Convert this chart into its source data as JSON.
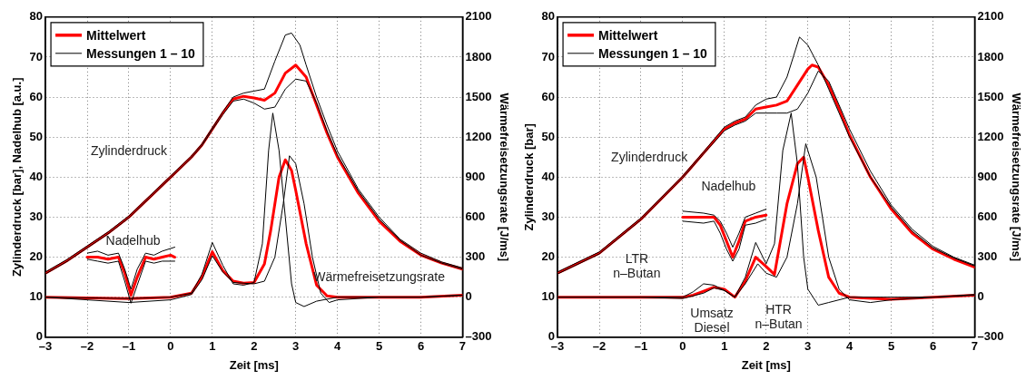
{
  "chart_data": [
    {
      "type": "line",
      "xlabel": "Zeit [ms]",
      "ylabel": "Zylinderdruck [bar], Nadelhub [a.u.]",
      "y2label": "Wärmefreisetzungsrate [J/ms]",
      "xlim": [
        -3,
        7
      ],
      "xticks": [
        {
          "value": -3,
          "label": "–3"
        },
        {
          "value": -2,
          "label": "–2"
        },
        {
          "value": -1,
          "label": "–1"
        },
        0,
        1,
        2,
        3,
        4,
        5,
        6,
        7
      ],
      "ylim": [
        0,
        80
      ],
      "yticks": [
        0,
        10,
        20,
        30,
        40,
        50,
        60,
        70,
        80
      ],
      "y2lim": [
        -300,
        2100
      ],
      "y2ticks": [
        {
          "value": -300,
          "label": "–300"
        },
        0,
        300,
        600,
        900,
        1200,
        1500,
        1800,
        2100
      ],
      "grid": true,
      "legend": "top left",
      "marker": "none",
      "line_style": "solid",
      "annotations": [
        "Zylinderdruck",
        "Nadelhub",
        "Wärmefreisetzungsrate"
      ],
      "series": [
        {
          "name": "Messungen 1 – 10",
          "color": "#000000",
          "x": [
            -3,
            -2.5,
            -2,
            -1.5,
            -1,
            -0.5,
            0,
            0.5,
            0.75,
            1,
            1.25,
            1.5,
            1.75,
            2,
            2.25,
            2.5,
            2.75,
            2.9,
            3.1,
            3.25,
            3.5,
            3.75,
            4,
            4.5,
            5,
            5.5,
            6,
            6.5,
            7
          ],
          "values": [
            16.3,
            19.3,
            22.8,
            26.3,
            30.3,
            35.3,
            40.3,
            45.3,
            48.3,
            52.3,
            56.3,
            60,
            61,
            61.5,
            62,
            69,
            75.5,
            76,
            73,
            68,
            60,
            53,
            46.5,
            37,
            30,
            24.5,
            21,
            18.8,
            17.3
          ]
        },
        {
          "color": "#000000",
          "x": [
            -3,
            -2.5,
            -2,
            -1.5,
            -1,
            -0.5,
            0,
            0.5,
            0.75,
            1,
            1.25,
            1.5,
            1.75,
            2,
            2.25,
            2.5,
            2.75,
            3,
            3.25,
            3.5,
            3.75,
            4,
            4.5,
            5,
            5.5,
            6,
            6.5,
            7
          ],
          "values": [
            15.8,
            18.8,
            22.3,
            25.8,
            29.8,
            34.8,
            39.8,
            44.8,
            47.8,
            51.8,
            55.6,
            59,
            59.5,
            58.5,
            57,
            57.5,
            62,
            64.5,
            64,
            58.5,
            51.5,
            45.5,
            36.5,
            29.5,
            24.2,
            20.5,
            18.5,
            17
          ]
        },
        {
          "color": "#000000",
          "x": [
            -2,
            -1.75,
            -1.5,
            -1.25,
            -1.1,
            -0.95,
            -0.8,
            -0.6,
            -0.4,
            -0.2,
            0.1
          ],
          "values": [
            21,
            21.5,
            20.5,
            21,
            17,
            12,
            17,
            21,
            20.5,
            21.5,
            22.5
          ]
        },
        {
          "color": "#000000",
          "x": [
            -2,
            -1.75,
            -1.5,
            -1.25,
            -1.1,
            -0.95,
            -0.8,
            -0.6,
            -0.4,
            -0.2,
            0.1
          ],
          "values": [
            19.5,
            19,
            18.5,
            19,
            14,
            8.5,
            13,
            19,
            18.5,
            19,
            19
          ]
        },
        {
          "color": "#000000",
          "axis": "y2",
          "x": [
            -3,
            -1,
            0,
            0.5,
            0.75,
            1,
            1.25,
            1.5,
            1.75,
            2,
            2.2,
            2.35,
            2.45,
            2.6,
            2.75,
            2.9,
            3,
            3.2,
            3.5,
            4,
            5,
            6,
            7
          ],
          "values": [
            0,
            -10,
            0,
            30,
            170,
            410,
            240,
            100,
            90,
            110,
            400,
            1100,
            1380,
            1100,
            600,
            100,
            -40,
            -70,
            -30,
            0,
            0,
            0,
            15
          ]
        },
        {
          "color": "#000000",
          "axis": "y2",
          "x": [
            -3,
            -1,
            0,
            0.5,
            0.75,
            1,
            1.25,
            1.5,
            2,
            2.25,
            2.5,
            2.7,
            2.85,
            3,
            3.2,
            3.4,
            3.6,
            3.8,
            4,
            5,
            6,
            7
          ],
          "values": [
            0,
            -40,
            -20,
            20,
            130,
            310,
            190,
            110,
            100,
            120,
            300,
            700,
            1060,
            1000,
            700,
            300,
            30,
            -40,
            -20,
            0,
            0,
            15
          ]
        },
        {
          "name": "Mittelwert",
          "color": "#ff0000",
          "x": [
            -3,
            -2.5,
            -2,
            -1.5,
            -1,
            -0.5,
            0,
            0.5,
            0.75,
            1,
            1.25,
            1.5,
            1.75,
            2,
            2.25,
            2.5,
            2.75,
            3,
            3.25,
            3.5,
            3.75,
            4,
            4.5,
            5,
            5.5,
            6,
            6.5,
            7
          ],
          "values": [
            16,
            19,
            22.5,
            26,
            30,
            35,
            40,
            45,
            48,
            52,
            56,
            59.5,
            60.2,
            59.8,
            59.2,
            61,
            66,
            68,
            65,
            58,
            51,
            45,
            36,
            29,
            24,
            20.5,
            18.5,
            17
          ]
        },
        {
          "color": "#ff0000",
          "x": [
            -2,
            -1.75,
            -1.5,
            -1.25,
            -1.1,
            -0.95,
            -0.8,
            -0.6,
            -0.4,
            -0.2,
            0,
            0.1
          ],
          "values": [
            20,
            20,
            19.5,
            20,
            16,
            10.5,
            15,
            20,
            19.5,
            20,
            20.5,
            20
          ]
        },
        {
          "color": "#ff0000",
          "axis": "y2",
          "x": [
            -3,
            -1,
            0,
            0.5,
            0.75,
            1,
            1.25,
            1.5,
            1.75,
            2,
            2.25,
            2.4,
            2.6,
            2.75,
            2.9,
            3,
            3.25,
            3.5,
            3.75,
            4,
            5,
            6,
            7
          ],
          "values": [
            0,
            -10,
            0,
            30,
            150,
            340,
            200,
            120,
            105,
            110,
            250,
            500,
            900,
            1030,
            950,
            800,
            400,
            90,
            10,
            0,
            0,
            0,
            15
          ]
        }
      ]
    },
    {
      "type": "line",
      "xlabel": "Zeit [ms]",
      "ylabel": "Zylinderdruck [bar]",
      "y2label": "Wärmefreisetzungsrate [J/ms]",
      "xlim": [
        -3,
        7
      ],
      "xticks": [
        {
          "value": -3,
          "label": "–3"
        },
        {
          "value": -2,
          "label": "–2"
        },
        {
          "value": -1,
          "label": "–1"
        },
        0,
        1,
        2,
        3,
        4,
        5,
        6,
        7
      ],
      "ylim": [
        0,
        80
      ],
      "yticks": [
        0,
        10,
        20,
        30,
        40,
        50,
        60,
        70,
        80
      ],
      "y2lim": [
        -300,
        2100
      ],
      "y2ticks": [
        {
          "value": -300,
          "label": "–300"
        },
        0,
        300,
        600,
        900,
        1200,
        1500,
        1800,
        2100
      ],
      "grid": true,
      "legend": "top left",
      "marker": "none",
      "line_style": "solid",
      "annotations": [
        "Zylinderdruck",
        "Nadelhub",
        "LTR\nn–Butan",
        "Umsatz\nDiesel",
        "HTR\nn–Butan"
      ],
      "series": [
        {
          "name": "Messungen 1 – 10",
          "color": "#000000",
          "x": [
            -3,
            -2,
            -1,
            0,
            0.5,
            1,
            1.25,
            1.5,
            1.75,
            2,
            2.25,
            2.5,
            2.8,
            3,
            3.25,
            3.5,
            3.75,
            4,
            4.5,
            5,
            5.5,
            6,
            6.5,
            7
          ],
          "values": [
            16.3,
            21.3,
            29.8,
            40.3,
            46.3,
            52.5,
            54,
            55,
            58,
            59.5,
            60,
            65,
            75,
            73,
            68,
            62,
            56,
            50,
            40,
            32.5,
            26.5,
            22.3,
            19.8,
            17.8
          ]
        },
        {
          "color": "#000000",
          "x": [
            -3,
            -2,
            -1,
            0,
            0.5,
            1,
            1.25,
            1.5,
            1.75,
            2,
            2.25,
            2.5,
            2.75,
            3,
            3.25,
            3.5,
            3.75,
            4,
            4.5,
            5,
            5.5,
            6,
            6.5,
            7
          ],
          "values": [
            15.8,
            20.8,
            29.3,
            39.8,
            45.8,
            51.6,
            53,
            54,
            56,
            56,
            56,
            56,
            57,
            61,
            66.5,
            64,
            58,
            52,
            41.5,
            33,
            27,
            22.7,
            20,
            18
          ]
        },
        {
          "color": "#000000",
          "x": [
            0,
            0.5,
            0.75,
            0.9,
            1.05,
            1.2,
            1.35,
            1.5,
            1.75,
            2
          ],
          "values": [
            31.5,
            31,
            30.5,
            29,
            26,
            22.5,
            26,
            30,
            31,
            32
          ]
        },
        {
          "color": "#000000",
          "x": [
            0,
            0.5,
            0.75,
            0.9,
            1.05,
            1.2,
            1.35,
            1.5,
            1.75,
            2
          ],
          "values": [
            29,
            28.5,
            29,
            26,
            22,
            19,
            22,
            28,
            28.5,
            29.5
          ]
        },
        {
          "color": "#000000",
          "axis": "y2",
          "x": [
            -3,
            -1,
            0,
            0.25,
            0.5,
            0.75,
            1,
            1.25,
            1.5,
            1.75,
            2,
            2.2,
            2.4,
            2.6,
            2.75,
            2.9,
            3,
            3.25,
            3.5,
            4,
            5,
            6,
            7
          ],
          "values": [
            0,
            0,
            0,
            40,
            100,
            90,
            50,
            0,
            150,
            410,
            250,
            400,
            1100,
            1380,
            1000,
            300,
            60,
            -60,
            -40,
            0,
            0,
            0,
            15
          ]
        },
        {
          "color": "#000000",
          "axis": "y2",
          "x": [
            -3,
            -1,
            0,
            0.25,
            0.5,
            0.75,
            1,
            1.25,
            1.5,
            1.8,
            2,
            2.25,
            2.5,
            2.75,
            2.95,
            3.2,
            3.5,
            3.75,
            4,
            4.5,
            5,
            6,
            7
          ],
          "values": [
            0,
            0,
            -10,
            10,
            30,
            70,
            50,
            0,
            100,
            250,
            180,
            150,
            300,
            700,
            1150,
            900,
            300,
            60,
            -20,
            -40,
            -20,
            0,
            20
          ]
        },
        {
          "name": "Mittelwert",
          "color": "#ff0000",
          "x": [
            -3,
            -2,
            -1,
            0,
            0.5,
            1,
            1.25,
            1.5,
            1.75,
            2,
            2.25,
            2.5,
            2.75,
            3,
            3.1,
            3.25,
            3.5,
            3.75,
            4,
            4.5,
            5,
            5.5,
            6,
            6.5,
            7
          ],
          "values": [
            16,
            21,
            29.5,
            40,
            46,
            52,
            53.5,
            54.5,
            57,
            57.5,
            58,
            59,
            63,
            67,
            68,
            67.5,
            63,
            57,
            50.5,
            40,
            32,
            26,
            22,
            19.5,
            17.5
          ]
        },
        {
          "color": "#ff0000",
          "x": [
            0,
            0.25,
            0.5,
            0.75,
            0.9,
            1.05,
            1.2,
            1.35,
            1.5,
            1.75,
            2
          ],
          "values": [
            30,
            30,
            30,
            30,
            28,
            24,
            20,
            24,
            29,
            30,
            30.5
          ]
        },
        {
          "color": "#ff0000",
          "axis": "y2",
          "x": [
            -3,
            -1,
            0,
            0.25,
            0.5,
            0.75,
            1,
            1.25,
            1.5,
            1.75,
            2,
            2.2,
            2.5,
            2.75,
            2.9,
            3,
            3.25,
            3.5,
            3.75,
            4,
            5,
            6,
            7
          ],
          "values": [
            0,
            0,
            0,
            15,
            45,
            75,
            60,
            0,
            120,
            300,
            230,
            170,
            700,
            1000,
            1050,
            900,
            500,
            150,
            30,
            0,
            -15,
            0,
            15
          ]
        }
      ]
    }
  ]
}
